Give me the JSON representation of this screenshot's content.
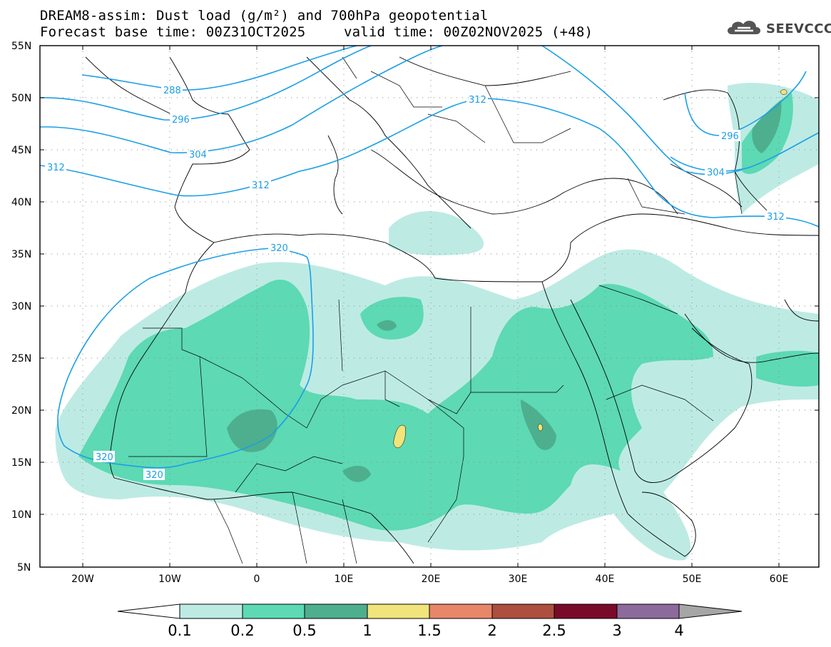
{
  "header": {
    "line1": "DREAM8-assim: Dust load (g/m²) and 700hPa geopotential",
    "line2_base": "Forecast base time: 00Z31OCT2025",
    "line2_valid": "valid time: 00Z02NOV2025 (+48)"
  },
  "logo": {
    "text": "SEEVCCC",
    "icon": "cloud-logo-icon"
  },
  "map": {
    "lat_labels": [
      "55N",
      "50N",
      "45N",
      "40N",
      "35N",
      "30N",
      "25N",
      "20N",
      "15N",
      "10N",
      "5N"
    ],
    "lon_labels": [
      "20W",
      "10W",
      "0",
      "10E",
      "20E",
      "30E",
      "40E",
      "50E",
      "60E"
    ],
    "geopotential_labels": [
      "288",
      "296",
      "304",
      "312",
      "312",
      "312",
      "312",
      "320",
      "320",
      "320",
      "296",
      "304"
    ]
  },
  "colorbar": {
    "ticks": [
      "0.1",
      "0.2",
      "0.5",
      "1",
      "1.5",
      "2",
      "2.5",
      "3",
      "4"
    ],
    "colors": [
      "#ffffff",
      "#bdebe4",
      "#5dd9b3",
      "#4daf8e",
      "#f0e47a",
      "#e8866a",
      "#ad4e3e",
      "#7a0a2a",
      "#8c6a9c",
      "#a6a6a6"
    ]
  },
  "colors": {
    "contour": "#1b9fe6",
    "dust_0_1": "#bdebe4",
    "dust_0_2": "#5dd9b3",
    "dust_0_5": "#4daf8e",
    "dust_1": "#f0e47a"
  }
}
